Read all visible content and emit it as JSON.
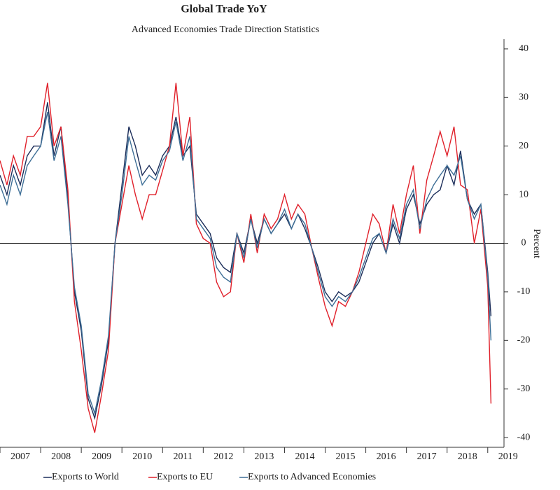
{
  "chart_data": {
    "type": "line",
    "title": "Global Trade YoY",
    "subtitle": "Advanced Economies Trade Direction Statistics",
    "y_label": "Percent",
    "x": [
      2007,
      2007.17,
      2007.33,
      2007.5,
      2007.67,
      2007.83,
      2008,
      2008.17,
      2008.33,
      2008.5,
      2008.67,
      2008.83,
      2009,
      2009.17,
      2009.33,
      2009.5,
      2009.67,
      2009.83,
      2010,
      2010.17,
      2010.33,
      2010.5,
      2010.67,
      2010.83,
      2011,
      2011.17,
      2011.33,
      2011.5,
      2011.67,
      2011.83,
      2012,
      2012.17,
      2012.33,
      2012.5,
      2012.67,
      2012.83,
      2013,
      2013.17,
      2013.33,
      2013.5,
      2013.67,
      2013.83,
      2014,
      2014.17,
      2014.33,
      2014.5,
      2014.67,
      2014.83,
      2015,
      2015.17,
      2015.33,
      2015.5,
      2015.67,
      2015.83,
      2016,
      2016.17,
      2016.33,
      2016.5,
      2016.67,
      2016.83,
      2017,
      2017.17,
      2017.33,
      2017.5,
      2017.67,
      2017.83,
      2018,
      2018.17,
      2018.33,
      2018.5,
      2018.67,
      2018.83,
      2019,
      2019.08
    ],
    "series": [
      {
        "name": "Exports to World",
        "color": "#1c2e5a",
        "values": [
          14,
          10,
          16,
          12,
          18,
          20,
          20,
          29,
          18,
          24,
          9,
          -10,
          -18,
          -32,
          -36,
          -29,
          -20,
          0,
          12,
          24,
          20,
          14,
          16,
          14,
          18,
          20,
          26,
          18,
          20,
          6,
          4,
          2,
          -3,
          -5,
          -6,
          2,
          -2,
          5,
          0,
          5,
          2,
          4,
          6,
          3,
          6,
          3,
          -1,
          -5,
          -10,
          -12,
          -10,
          -11,
          -10,
          -8,
          -4,
          0,
          2,
          -2,
          4,
          0,
          7,
          10,
          4,
          8,
          10,
          11,
          16,
          12,
          19,
          9,
          6,
          8,
          -6,
          -15
        ]
      },
      {
        "name": "Exports to EU",
        "color": "#e0202a",
        "values": [
          17,
          12,
          18,
          14,
          22,
          22,
          24,
          33,
          20,
          24,
          11,
          -12,
          -22,
          -34,
          -39,
          -31,
          -22,
          0,
          8,
          16,
          10,
          5,
          10,
          10,
          15,
          20,
          33,
          18,
          26,
          4,
          1,
          0,
          -8,
          -11,
          -10,
          2,
          -4,
          6,
          -2,
          6,
          3,
          5,
          10,
          5,
          8,
          6,
          -1,
          -7,
          -13,
          -17,
          -12,
          -13,
          -10,
          -6,
          0,
          6,
          4,
          -2,
          8,
          2,
          10,
          16,
          2,
          13,
          18,
          23,
          18,
          24,
          12,
          11,
          0,
          7,
          -9,
          -33
        ]
      },
      {
        "name": "Exports to Advanced Economies",
        "color": "#3d6e96",
        "values": [
          12,
          8,
          14,
          10,
          16,
          18,
          20,
          27,
          17,
          22,
          8,
          -9,
          -17,
          -31,
          -35,
          -28,
          -19,
          0,
          10,
          22,
          17,
          12,
          14,
          13,
          17,
          19,
          25,
          17,
          22,
          5,
          3,
          1,
          -5,
          -7,
          -8,
          2,
          -3,
          5,
          -1,
          5,
          2,
          4,
          7,
          3,
          6,
          4,
          -1,
          -6,
          -11,
          -13,
          -11,
          -12,
          -10,
          -7,
          -3,
          1,
          2,
          -2,
          5,
          1,
          8,
          11,
          3,
          9,
          12,
          14,
          16,
          14,
          18,
          9,
          5,
          8,
          -7,
          -20
        ]
      }
    ],
    "xlim": [
      2007,
      2019.4
    ],
    "xticks": [
      2007,
      2008,
      2009,
      2010,
      2011,
      2012,
      2013,
      2014,
      2015,
      2016,
      2017,
      2018,
      2019
    ],
    "ylim": [
      -42,
      42
    ],
    "yticks": [
      -40,
      -30,
      -20,
      -10,
      0,
      10,
      20,
      30,
      40
    ],
    "y_axis_side": "right",
    "zero_line": true,
    "legend": "bottom"
  }
}
